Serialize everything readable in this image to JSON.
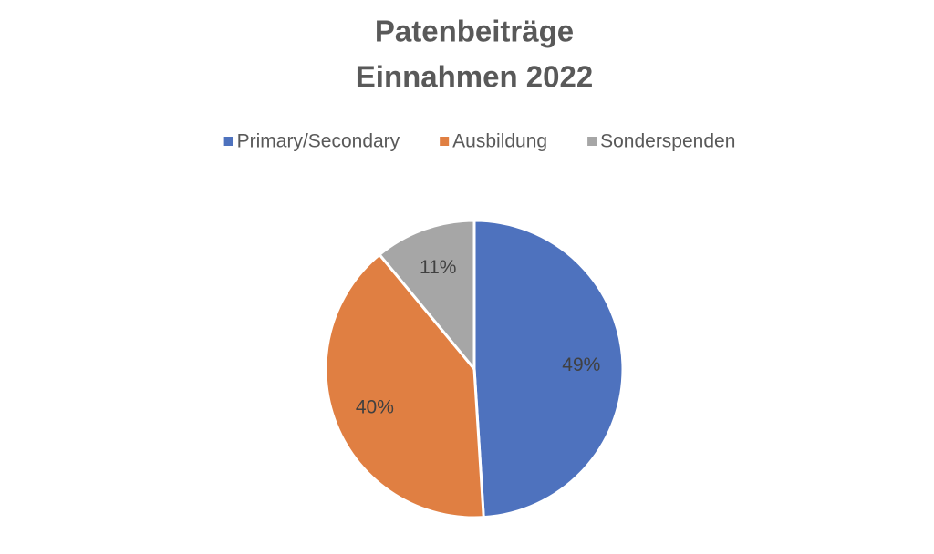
{
  "chart_data": {
    "type": "pie",
    "title": [
      "Patenbeiträge",
      "Einnahmen 2022"
    ],
    "categories": [
      "Primary/Secondary",
      "Ausbildung",
      "Sonderspenden"
    ],
    "values": [
      49,
      40,
      11
    ],
    "value_labels": [
      "49%",
      "40%",
      "11%"
    ],
    "colors": [
      "#4e72be",
      "#e07f42",
      "#a6a6a6"
    ],
    "legend": "top"
  }
}
